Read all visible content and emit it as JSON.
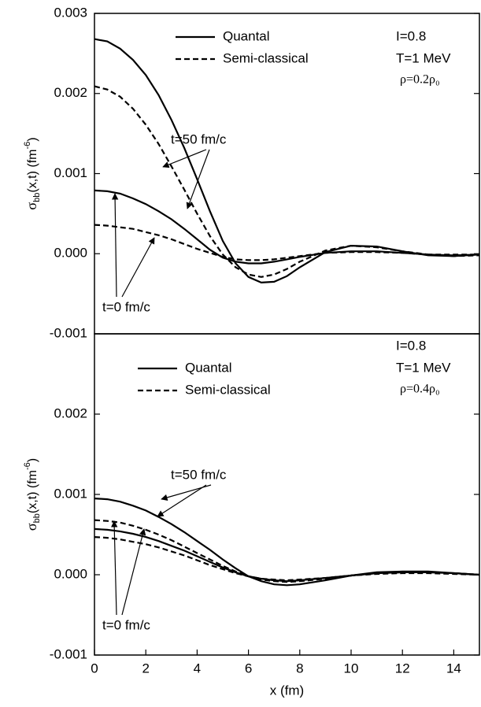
{
  "chart_data": [
    {
      "type": "line",
      "ylabel": {
        "symbol": "σ",
        "sub": "bb",
        "text": "(x,t) (fm",
        "sup": "-6",
        "close": ")"
      },
      "xlim": [
        0,
        15
      ],
      "ylim": [
        -0.001,
        0.003
      ],
      "yticks": [
        0.003,
        0.002,
        0.001,
        {
          "value": 0,
          "label": "0.000"
        },
        -0.001
      ],
      "x": [
        0,
        0.5,
        1,
        1.5,
        2,
        2.5,
        3,
        3.5,
        4,
        4.5,
        5,
        5.5,
        6,
        6.5,
        7,
        7.5,
        8,
        9,
        10,
        11,
        12,
        13,
        14,
        15
      ],
      "series": [
        {
          "style": "solid",
          "color": "#000000",
          "values": [
            0.00268,
            0.00265,
            0.00256,
            0.00242,
            0.00223,
            0.00198,
            0.00167,
            0.00132,
            0.00093,
            0.00053,
            0.00016,
            -0.00012,
            -0.00029,
            -0.00036,
            -0.00035,
            -0.00028,
            -0.00017,
            2e-05,
            0.0001,
            9e-05,
            3e-05,
            -2e-05,
            -3e-05,
            -1e-05
          ]
        },
        {
          "style": "dashed",
          "color": "#000000",
          "values": [
            0.00209,
            0.00205,
            0.00196,
            0.00181,
            0.00161,
            0.00137,
            0.00109,
            0.0008,
            0.0005,
            0.00022,
            -1e-05,
            -0.00017,
            -0.00026,
            -0.00029,
            -0.00026,
            -0.00019,
            -0.0001,
            4e-05,
            0.0001,
            8e-05,
            3e-05,
            -1e-05,
            -3e-05,
            -2e-05
          ]
        },
        {
          "style": "solid",
          "color": "#000000",
          "values": [
            0.00079,
            0.00078,
            0.00075,
            0.00069,
            0.00062,
            0.00053,
            0.00043,
            0.00031,
            0.00018,
            5e-05,
            -5e-05,
            -0.0001,
            -0.00012,
            -0.00012,
            -0.0001,
            -7e-05,
            -4e-05,
            1e-05,
            3e-05,
            3e-05,
            1e-05,
            -1e-05,
            -2e-05,
            -1e-05
          ]
        },
        {
          "style": "dashed",
          "color": "#000000",
          "values": [
            0.00036,
            0.00035,
            0.00033,
            0.00031,
            0.00027,
            0.00023,
            0.00018,
            0.00012,
            6e-05,
            1e-05,
            -4e-05,
            -7e-05,
            -8e-05,
            -8e-05,
            -7e-05,
            -5e-05,
            -3e-05,
            1e-05,
            2e-05,
            2e-05,
            1e-05,
            -1e-05,
            -1e-05,
            -1e-05
          ]
        }
      ],
      "legend": [
        {
          "name": "Quantal",
          "style": "solid"
        },
        {
          "name": "Semi-classical",
          "style": "dashed"
        }
      ],
      "info": [
        "I=0.8",
        "T=1 MeV",
        "ρ=0.2ρ₀"
      ],
      "annotations": [
        "t=50 fm/c",
        "t=0 fm/c"
      ]
    },
    {
      "type": "line",
      "ylabel": {
        "symbol": "σ",
        "sub": "bb",
        "text": "(x,t) (fm",
        "sup": "-6",
        "close": ")"
      },
      "xlabel": "x (fm)",
      "xlim": [
        0,
        15
      ],
      "ylim": [
        -0.001,
        0.003
      ],
      "xticks": [
        0,
        2,
        4,
        6,
        8,
        10,
        12,
        14
      ],
      "yticks": [
        0.002,
        0.001,
        {
          "value": 0,
          "label": "0.000"
        },
        -0.001
      ],
      "x": [
        0,
        0.5,
        1,
        1.5,
        2,
        2.5,
        3,
        3.5,
        4,
        4.5,
        5,
        5.5,
        6,
        6.5,
        7,
        7.5,
        8,
        9,
        10,
        11,
        12,
        13,
        14,
        15
      ],
      "series": [
        {
          "style": "solid",
          "color": "#000000",
          "values": [
            0.00095,
            0.00094,
            0.00091,
            0.00086,
            0.0008,
            0.00072,
            0.00063,
            0.00053,
            0.00042,
            0.00031,
            0.00019,
            8e-05,
            -2e-05,
            -8e-05,
            -0.00012,
            -0.00013,
            -0.00012,
            -7e-05,
            -1e-05,
            3e-05,
            4e-05,
            4e-05,
            2e-05,
            0
          ]
        },
        {
          "style": "dashed",
          "color": "#000000",
          "values": [
            0.00068,
            0.00067,
            0.00065,
            0.00061,
            0.00056,
            0.0005,
            0.00043,
            0.00035,
            0.00027,
            0.00019,
            0.00011,
            4e-05,
            -2e-05,
            -6e-05,
            -8e-05,
            -9e-05,
            -8e-05,
            -5e-05,
            -1e-05,
            2e-05,
            3e-05,
            3e-05,
            2e-05,
            0
          ]
        },
        {
          "style": "solid",
          "color": "#000000",
          "values": [
            0.00057,
            0.00056,
            0.00054,
            0.00051,
            0.00047,
            0.00042,
            0.00036,
            0.0003,
            0.00023,
            0.00016,
            9e-05,
            3e-05,
            -2e-05,
            -5e-05,
            -7e-05,
            -8e-05,
            -7e-05,
            -4e-05,
            -1e-05,
            2e-05,
            3e-05,
            3e-05,
            2e-05,
            0
          ]
        },
        {
          "style": "dashed",
          "color": "#000000",
          "values": [
            0.00047,
            0.00046,
            0.00044,
            0.00041,
            0.00038,
            0.00034,
            0.00029,
            0.00024,
            0.00018,
            0.00012,
            7e-05,
            2e-05,
            -2e-05,
            -5e-05,
            -6e-05,
            -7e-05,
            -6e-05,
            -4e-05,
            -1e-05,
            1e-05,
            2e-05,
            2e-05,
            1e-05,
            0
          ]
        }
      ],
      "legend": [
        {
          "name": "Quantal",
          "style": "solid"
        },
        {
          "name": "Semi-classical",
          "style": "dashed"
        }
      ],
      "info": [
        "I=0.8",
        "T=1 MeV",
        "ρ=0.4ρ₀"
      ],
      "annotations": [
        "t=50 fm/c",
        "t=0 fm/c"
      ]
    }
  ]
}
